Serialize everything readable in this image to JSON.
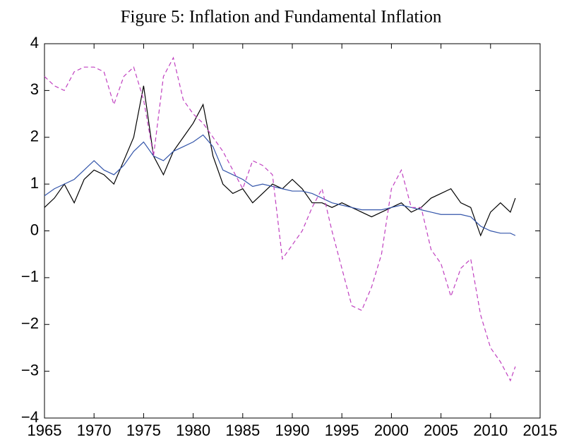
{
  "chart_data": {
    "type": "line",
    "title": "Figure 5: Inflation and Fundamental Inflation",
    "x": [
      1965,
      1966,
      1967,
      1968,
      1969,
      1970,
      1971,
      1972,
      1973,
      1974,
      1975,
      1976,
      1977,
      1978,
      1979,
      1980,
      1981,
      1982,
      1983,
      1984,
      1985,
      1986,
      1987,
      1988,
      1989,
      1990,
      1991,
      1992,
      1993,
      1994,
      1995,
      1996,
      1997,
      1998,
      1999,
      2000,
      2001,
      2002,
      2003,
      2004,
      2005,
      2006,
      2007,
      2008,
      2009,
      2010,
      2011,
      2012,
      2012.5
    ],
    "series": [
      {
        "color": "#000000",
        "style": "solid",
        "values": [
          0.5,
          0.7,
          1.0,
          0.6,
          1.1,
          1.3,
          1.2,
          1.0,
          1.5,
          2.0,
          3.1,
          1.6,
          1.2,
          1.7,
          2.0,
          2.3,
          2.7,
          1.6,
          1.0,
          0.8,
          0.9,
          0.6,
          0.8,
          1.0,
          0.9,
          1.1,
          0.9,
          0.6,
          0.6,
          0.5,
          0.6,
          0.5,
          0.4,
          0.3,
          0.4,
          0.5,
          0.6,
          0.4,
          0.5,
          0.7,
          0.8,
          0.9,
          0.6,
          0.5,
          -0.1,
          0.4,
          0.6,
          0.4,
          0.7
        ]
      },
      {
        "color": "#3355aa",
        "style": "solid",
        "values": [
          0.75,
          0.9,
          1.0,
          1.1,
          1.3,
          1.5,
          1.3,
          1.2,
          1.4,
          1.7,
          1.9,
          1.6,
          1.5,
          1.7,
          1.8,
          1.9,
          2.05,
          1.8,
          1.3,
          1.2,
          1.1,
          0.95,
          1.0,
          0.95,
          0.9,
          0.85,
          0.85,
          0.8,
          0.7,
          0.6,
          0.55,
          0.5,
          0.45,
          0.45,
          0.45,
          0.5,
          0.55,
          0.5,
          0.45,
          0.4,
          0.35,
          0.35,
          0.35,
          0.3,
          0.1,
          0.0,
          -0.05,
          -0.05,
          -0.1
        ]
      },
      {
        "color": "#c040c0",
        "style": "dashed",
        "values": [
          3.3,
          3.1,
          3.0,
          3.4,
          3.5,
          3.5,
          3.4,
          2.7,
          3.3,
          3.5,
          2.8,
          1.6,
          3.3,
          3.7,
          2.8,
          2.5,
          2.3,
          2.0,
          1.7,
          1.3,
          0.9,
          1.5,
          1.4,
          1.2,
          -0.6,
          -0.3,
          0.0,
          0.5,
          0.9,
          0.0,
          -0.8,
          -1.6,
          -1.7,
          -1.2,
          -0.5,
          0.9,
          1.3,
          0.5,
          0.5,
          -0.4,
          -0.7,
          -1.4,
          -0.8,
          -0.6,
          -1.8,
          -2.5,
          -2.8,
          -3.2,
          -2.9
        ]
      }
    ],
    "xlim": [
      1965,
      2015
    ],
    "xticks": [
      1965,
      1970,
      1975,
      1980,
      1985,
      1990,
      1995,
      2000,
      2005,
      2010,
      2015
    ],
    "ylim": [
      -4,
      4
    ],
    "yticks": [
      {
        "value": -4,
        "label": "−4"
      },
      {
        "value": -3,
        "label": "−3"
      },
      {
        "value": -2,
        "label": "−2"
      },
      {
        "value": -1,
        "label": "−1"
      },
      0,
      1,
      2,
      3,
      4
    ],
    "grid": false
  }
}
